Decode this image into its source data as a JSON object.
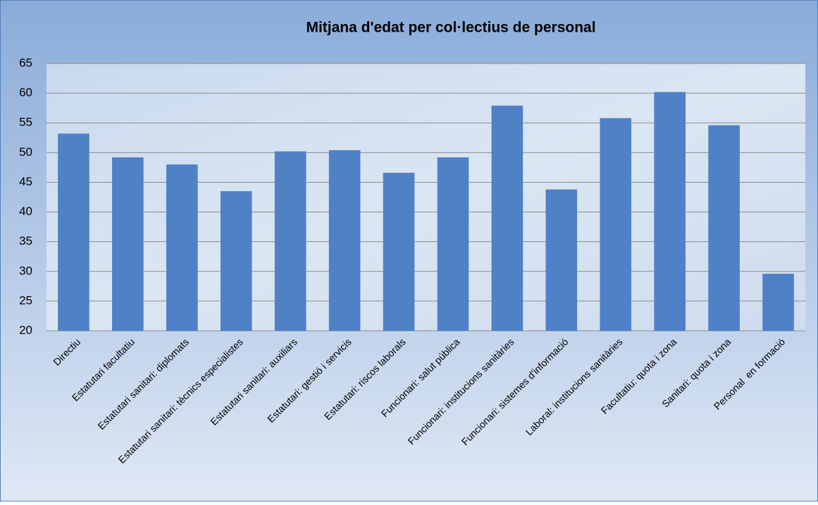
{
  "chart_data": {
    "type": "bar",
    "title": "Mitjana d'edat per col·lectius de personal",
    "categories": [
      "Directiu",
      "Estatutari facultatiu",
      "Estatutari sanitari: diplomats",
      "Estatutari sanitari: tècnics especialistes",
      "Estatutari sanitari: auxiliars",
      "Estatutari: gestió i servicis",
      "Estatutari: riscos laborals",
      "Funcionari: salut pública",
      "Funcionari: institucions sanitàries",
      "Funcionari: sistemes d'informació",
      "Laboral: institucions sanitàries",
      "Facultatiu: quota i zona",
      "Sanitari: quota i zona",
      "Personal  en formació"
    ],
    "values": [
      53.2,
      49.2,
      48.0,
      43.5,
      50.2,
      50.4,
      46.6,
      49.2,
      57.9,
      43.8,
      55.8,
      60.2,
      54.6,
      29.6
    ],
    "color": "#4f81c7",
    "ylim": [
      20,
      65
    ],
    "yticks": [
      20,
      25,
      30,
      35,
      40,
      45,
      50,
      55,
      60,
      65
    ],
    "grid": true
  }
}
